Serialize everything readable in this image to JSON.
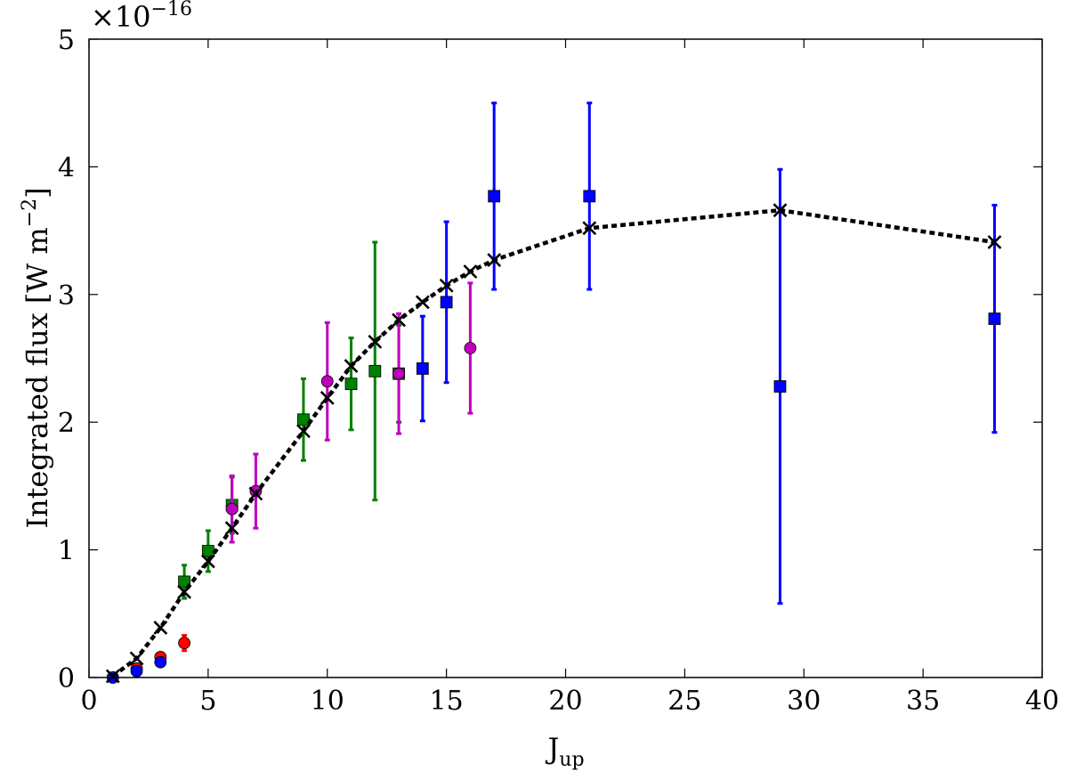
{
  "chart_data": {
    "type": "scatter",
    "title": "",
    "xlabel": "J",
    "xlabel_sub": "up",
    "ylabel": "Integrated flux [W m",
    "ylabel_sup": "−2",
    "ylabel_close": "]",
    "y_multiplier": "×10",
    "y_multiplier_exp": "−16",
    "xlim": [
      0,
      40
    ],
    "ylim": [
      0,
      5
    ],
    "x_ticks": [
      0,
      5,
      10,
      15,
      20,
      25,
      30,
      35,
      40
    ],
    "y_ticks": [
      0,
      1,
      2,
      3,
      4,
      5
    ],
    "grid": false,
    "legend": "none",
    "y_unit_scale": "1e-16",
    "series": [
      {
        "color": "#ff0000",
        "marker": "circle",
        "points": [
          {
            "x": 1,
            "y": 0.0,
            "err": 0.01
          },
          {
            "x": 2,
            "y": 0.07,
            "err": 0.02
          },
          {
            "x": 3,
            "y": 0.16,
            "err": 0.03
          },
          {
            "x": 4,
            "y": 0.27,
            "err": 0.06
          }
        ]
      },
      {
        "color": "#0000ff",
        "marker": "circle",
        "points": [
          {
            "x": 1,
            "y": 0.0,
            "err": 0.01
          },
          {
            "x": 2,
            "y": 0.05,
            "err": 0.01
          },
          {
            "x": 3,
            "y": 0.12,
            "err": 0.02
          }
        ]
      },
      {
        "color": "#008000",
        "marker": "square",
        "points": [
          {
            "x": 4,
            "y": 0.75,
            "err": 0.13
          },
          {
            "x": 5,
            "y": 0.99,
            "err": 0.16
          },
          {
            "x": 6,
            "y": 1.35,
            "err": 0.22
          },
          {
            "x": 9,
            "y": 2.02,
            "err": 0.32
          },
          {
            "x": 11,
            "y": 2.3,
            "err": 0.36
          },
          {
            "x": 12,
            "y": 2.4,
            "err": 1.01
          },
          {
            "x": 13,
            "y": 2.38,
            "err": 0.38
          }
        ]
      },
      {
        "color": "#bf00bf",
        "marker": "circle",
        "points": [
          {
            "x": 6,
            "y": 1.32,
            "err": 0.26
          },
          {
            "x": 7,
            "y": 1.46,
            "err": 0.29
          },
          {
            "x": 10,
            "y": 2.32,
            "err": 0.46
          },
          {
            "x": 13,
            "y": 2.38,
            "err": 0.47
          },
          {
            "x": 16,
            "y": 2.58,
            "err": 0.51
          }
        ]
      },
      {
        "color": "#0000ff",
        "marker": "square",
        "points": [
          {
            "x": 14,
            "y": 2.42,
            "err": 0.41
          },
          {
            "x": 15,
            "y": 2.94,
            "err": 0.63
          },
          {
            "x": 17,
            "y": 3.77,
            "err": 0.73
          },
          {
            "x": 21,
            "y": 3.77,
            "err": 0.73
          },
          {
            "x": 29,
            "y": 2.28,
            "err": 1.7
          },
          {
            "x": 38,
            "y": 2.81,
            "err": 0.89
          }
        ]
      }
    ],
    "model": {
      "color": "#000000",
      "marker": "x",
      "line": "dotted",
      "points": [
        {
          "x": 1,
          "y": 0.01
        },
        {
          "x": 2,
          "y": 0.15
        },
        {
          "x": 3,
          "y": 0.39
        },
        {
          "x": 4,
          "y": 0.67
        },
        {
          "x": 5,
          "y": 0.91
        },
        {
          "x": 6,
          "y": 1.17
        },
        {
          "x": 7,
          "y": 1.44
        },
        {
          "x": 9,
          "y": 1.93
        },
        {
          "x": 10,
          "y": 2.19
        },
        {
          "x": 11,
          "y": 2.44
        },
        {
          "x": 12,
          "y": 2.63
        },
        {
          "x": 13,
          "y": 2.8
        },
        {
          "x": 14,
          "y": 2.94
        },
        {
          "x": 15,
          "y": 3.07
        },
        {
          "x": 16,
          "y": 3.18
        },
        {
          "x": 17,
          "y": 3.27
        },
        {
          "x": 21,
          "y": 3.52
        },
        {
          "x": 29,
          "y": 3.66
        },
        {
          "x": 38,
          "y": 3.41
        }
      ]
    }
  }
}
